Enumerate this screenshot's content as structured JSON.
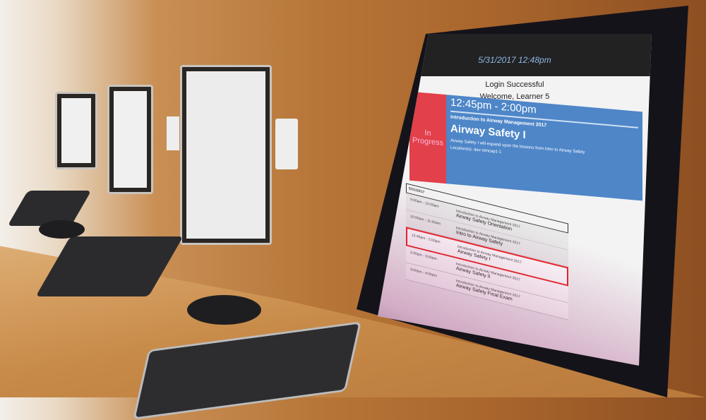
{
  "screen": {
    "datetime": "5/31/2017 12:48pm",
    "login_message": "Login Successful",
    "welcome": "Welcome, Learner 5",
    "current": {
      "status": "In Progress",
      "time": "12:45pm - 2:00pm",
      "course": "Introduction to Airway Management 2017",
      "title": "Airway Safety I",
      "description": "Airway Safety I will expand upon the lessons from Intro to Airway Safety",
      "location": "Location(s): dev-simcap1-1"
    },
    "schedule": {
      "date": "5/31/2017",
      "items": [
        {
          "time": "9:00am - 10:00am",
          "course": "Introduction to Airway Management 2017",
          "title": "Airway Safety Orientation"
        },
        {
          "time": "10:00am - 11:00am",
          "course": "Introduction to Airway Management 2017",
          "title": "Intro to Airway Safety"
        },
        {
          "time": "12:45pm - 2:00pm",
          "course": "Introduction to Airway Management 2017",
          "title": "Airway Safety I"
        },
        {
          "time": "2:00pm - 3:00pm",
          "course": "Introduction to Airway Management 2017",
          "title": "Airway Safety II"
        },
        {
          "time": "3:00pm - 4:00pm",
          "course": "Introduction to Airway Management 2017",
          "title": "Airway Safety Final Exam"
        }
      ]
    },
    "colors": {
      "in_progress": "#e2404a",
      "card": "#4e86c8",
      "highlight": "#e22222"
    }
  }
}
